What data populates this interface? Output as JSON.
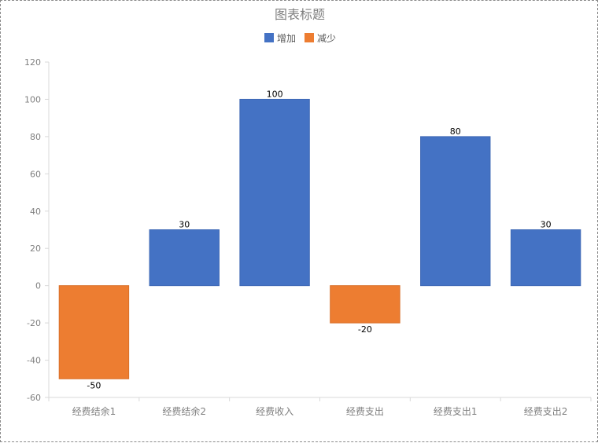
{
  "chart_data": {
    "type": "bar",
    "title": "图表标题",
    "categories": [
      "经费结余1",
      "经费结余2",
      "经费收入",
      "经费支出",
      "经费支出1",
      "经费支出2"
    ],
    "values": [
      -50,
      30,
      100,
      -20,
      80,
      30
    ],
    "series": [
      {
        "name": "增加",
        "color": "#4472c4"
      },
      {
        "name": "减少",
        "color": "#ed7d31"
      }
    ],
    "ylim": [
      -60,
      120
    ],
    "yticks": [
      -60,
      -40,
      -20,
      0,
      20,
      40,
      60,
      80,
      100,
      120
    ],
    "xlabel": "",
    "ylabel": "",
    "legend_position": "top",
    "grid": false
  }
}
